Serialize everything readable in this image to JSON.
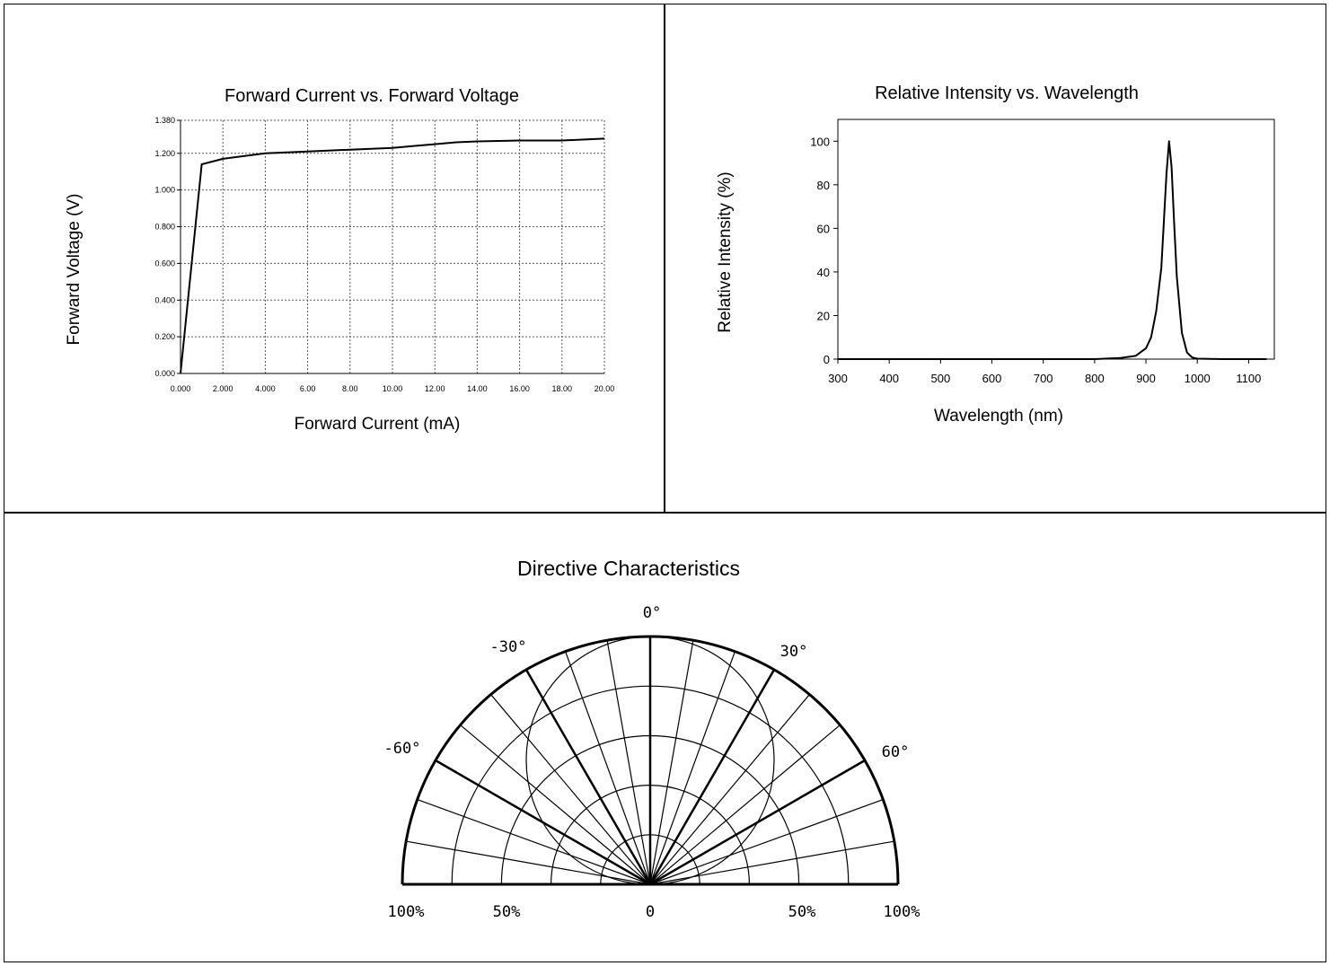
{
  "chart_data": [
    {
      "type": "line",
      "title": "Forward Current vs. Forward Voltage",
      "xlabel": "Forward Current (mA)",
      "ylabel": "Forward Voltage (V)",
      "xlim": [
        0,
        20
      ],
      "ylim": [
        0,
        1.38
      ],
      "x_ticks": [
        "0.000",
        "2.000",
        "4.000",
        "6.00",
        "8.00",
        "10.00",
        "12.00",
        "14.00",
        "16.00",
        "18.00",
        "20.00"
      ],
      "y_ticks": [
        "0.000",
        "0.200",
        "0.400",
        "0.600",
        "0.800",
        "1.000",
        "1.200",
        "1.380"
      ],
      "grid": true,
      "series": [
        {
          "x": [
            0,
            1,
            2,
            4,
            6,
            8,
            10,
            11,
            12,
            13,
            14,
            16,
            18,
            20
          ],
          "values": [
            0,
            1.14,
            1.17,
            1.2,
            1.21,
            1.22,
            1.23,
            1.24,
            1.25,
            1.26,
            1.265,
            1.27,
            1.27,
            1.28
          ]
        }
      ]
    },
    {
      "type": "line",
      "title": "Relative Intensity vs. Wavelength",
      "xlabel": "Wavelength (nm)",
      "ylabel": "Relative Intensity (%)",
      "xlim": [
        300,
        1150
      ],
      "ylim": [
        0,
        110
      ],
      "x_ticks": [
        "300",
        "400",
        "500",
        "600",
        "700",
        "800",
        "900",
        "1000",
        "1100"
      ],
      "y_ticks": [
        "0",
        "20",
        "40",
        "60",
        "80",
        "100"
      ],
      "grid": false,
      "series": [
        {
          "x": [
            300,
            800,
            850,
            880,
            900,
            910,
            920,
            930,
            940,
            945,
            950,
            955,
            960,
            970,
            980,
            990,
            1000,
            1050,
            1135
          ],
          "values": [
            0,
            0,
            0.5,
            1.5,
            5,
            10,
            22,
            42,
            85,
            100,
            88,
            62,
            38,
            12,
            3,
            0.8,
            0.2,
            0,
            0
          ]
        }
      ]
    },
    {
      "type": "polar",
      "title": "Directive Characteristics",
      "angle_labels": [
        "0°",
        "30°",
        "-30°",
        "60°",
        "-60°"
      ],
      "radial_labels": [
        "100%",
        "50%",
        "0",
        "50%",
        "100%"
      ]
    }
  ]
}
